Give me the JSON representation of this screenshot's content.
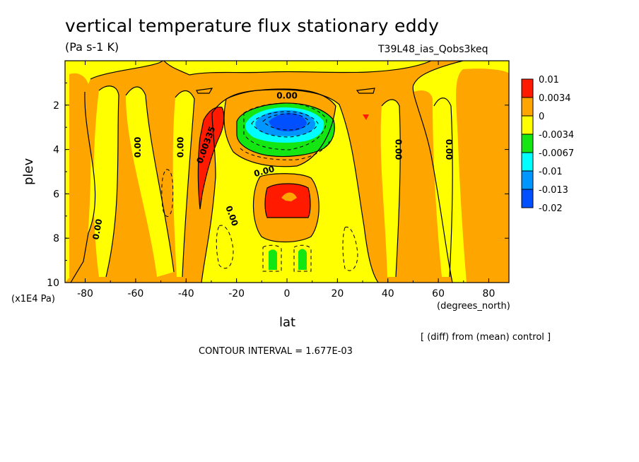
{
  "title": "vertical temperature flux stationary eddy",
  "units": "(Pa s-1 K)",
  "run_label": "T39L48_ias_Qobs3keq",
  "diff_label": "[ (diff) from (mean) control ]",
  "contour_interval": "CONTOUR INTERVAL = 1.677E-03",
  "colors": {
    "red": "#ff1a00",
    "orange": "#ffa500",
    "yellow": "#ffff00",
    "green": "#14e614",
    "cyan": "#00ffff",
    "skyblue": "#0096ff",
    "blue": "#0050ff"
  },
  "chart_data": {
    "type": "heatmap",
    "title": "vertical temperature flux stationary eddy",
    "xlabel": "lat",
    "xunit": "(degrees_north)",
    "ylabel": "plev",
    "yunit": "(x1E4 Pa)",
    "xlim": [
      -88,
      88
    ],
    "ylim": [
      10,
      0
    ],
    "x_ticks": [
      "-80",
      "-60",
      "-40",
      "-20",
      "0",
      "20",
      "40",
      "60",
      "80"
    ],
    "x_tick_values": [
      -80,
      -60,
      -40,
      -20,
      0,
      20,
      40,
      60,
      80
    ],
    "y_ticks": [
      "2",
      "4",
      "6",
      "8",
      "10"
    ],
    "y_tick_values": [
      2,
      4,
      6,
      8,
      10
    ],
    "legend_labels": [
      "0.01",
      "0.0034",
      "0",
      "-0.0034",
      "-0.0067",
      "-0.01",
      "-0.013",
      "-0.02"
    ],
    "legend_colors": [
      "#ff1a00",
      "#ffa500",
      "#ffff00",
      "#14e614",
      "#00ffff",
      "#0096ff",
      "#0050ff"
    ],
    "contour_labels": [
      {
        "text": "0.00",
        "lat": -75,
        "plev": 7.6,
        "rotate": -80
      },
      {
        "text": "0.00",
        "lat": -59,
        "plev": 3.9,
        "rotate": -90
      },
      {
        "text": "0.00",
        "lat": -42,
        "plev": 3.9,
        "rotate": -90
      },
      {
        "text": "0.00335",
        "lat": -32,
        "plev": 3.8,
        "rotate": -70
      },
      {
        "text": "0.00",
        "lat": -22,
        "plev": 7.0,
        "rotate": 70
      },
      {
        "text": "0.00",
        "lat": -9,
        "plev": 5.0,
        "rotate": -15
      },
      {
        "text": "0.00",
        "lat": 0,
        "plev": 1.6,
        "rotate": 0
      },
      {
        "text": "0.00",
        "lat": 44,
        "plev": 4.0,
        "rotate": 90
      },
      {
        "text": "0.00",
        "lat": 64,
        "plev": 4.0,
        "rotate": 90
      }
    ],
    "regions": [
      {
        "level": "red",
        "desc": "positive flux west flank",
        "lat_range": [
          -36,
          -27
        ],
        "plev_range": [
          2.4,
          6.6
        ]
      },
      {
        "level": "red",
        "desc": "positive flux centre",
        "lat_range": [
          -8,
          9
        ],
        "plev_range": [
          6.0,
          7.6
        ]
      },
      {
        "level": "blue",
        "desc": "negative flux core",
        "lat_range": [
          -8,
          8
        ],
        "plev_range": [
          2.4,
          3.4
        ]
      },
      {
        "level": "green",
        "desc": "negative flux low left",
        "lat_range": [
          -7,
          -4
        ],
        "plev_range": [
          9.0,
          9.8
        ]
      },
      {
        "level": "green",
        "desc": "negative flux low right",
        "lat_range": [
          4,
          7
        ],
        "plev_range": [
          9.0,
          9.8
        ]
      }
    ]
  }
}
